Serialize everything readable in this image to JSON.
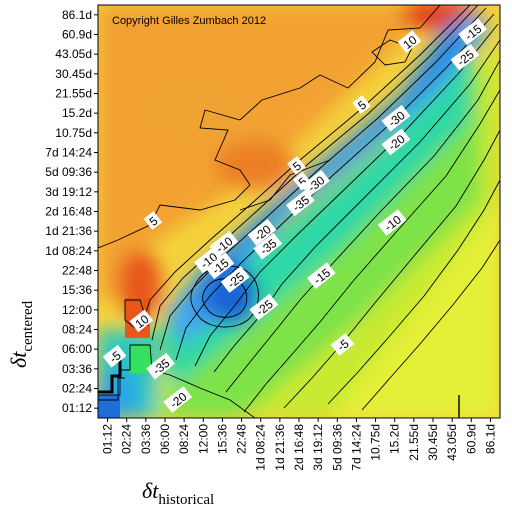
{
  "chart_data": {
    "type": "heatmap",
    "subtype": "contour",
    "copyright": "Copyright Gilles Zumbach 2012",
    "xlabel": {
      "main": "δt",
      "sub": "historical"
    },
    "ylabel": {
      "main": "δt",
      "sub": "centered"
    },
    "x_ticks": [
      "01:12",
      "02:24",
      "03:36",
      "06:00",
      "08:24",
      "12:00",
      "15:36",
      "22:48",
      "1d 08:24",
      "1d 21:36",
      "2d 16:48",
      "3d 19:12",
      "5d 09:36",
      "7d 14:24",
      "10.75d",
      "15.2d",
      "21.55d",
      "30.45d",
      "43.05d",
      "60.9d",
      "86.1d"
    ],
    "y_ticks": [
      "01:12",
      "02:24",
      "03:36",
      "06:00",
      "08:24",
      "12:00",
      "15:36",
      "22:48",
      "1d 08:24",
      "1d 21:36",
      "2d 16:48",
      "3d 19:12",
      "5d 09:36",
      "7d 14:24",
      "10.75d",
      "15.2d",
      "21.55d",
      "30.45d",
      "43.05d",
      "60.9d",
      "86.1d"
    ],
    "contour_levels": [
      -35,
      -30,
      -25,
      -20,
      -15,
      -10,
      -5,
      0,
      5,
      10,
      15
    ],
    "contour_labels": [
      {
        "text": "10",
        "x": 16.3,
        "y": 19.1
      },
      {
        "text": "-15",
        "x": 19.6,
        "y": 19.6
      },
      {
        "text": "-25",
        "x": 19.2,
        "y": 18.3
      },
      {
        "text": "5",
        "x": 13.8,
        "y": 15.9
      },
      {
        "text": "-30",
        "x": 15.6,
        "y": 15.2
      },
      {
        "text": "-20",
        "x": 15.6,
        "y": 14.0
      },
      {
        "text": "5",
        "x": 10.4,
        "y": 12.8
      },
      {
        "text": "5",
        "x": 10.7,
        "y": 12.0
      },
      {
        "text": "-30",
        "x": 11.4,
        "y": 11.9
      },
      {
        "text": "-35",
        "x": 10.6,
        "y": 10.9
      },
      {
        "text": "-10",
        "x": 15.4,
        "y": 9.9
      },
      {
        "text": "5",
        "x": 2.9,
        "y": 10.0
      },
      {
        "text": "-20",
        "x": 8.6,
        "y": 9.4
      },
      {
        "text": "-10",
        "x": 6.6,
        "y": 8.8
      },
      {
        "text": "-35",
        "x": 8.9,
        "y": 8.7
      },
      {
        "text": "-10",
        "x": 5.8,
        "y": 8.0
      },
      {
        "text": "-15",
        "x": 6.4,
        "y": 7.7
      },
      {
        "text": "-25",
        "x": 7.2,
        "y": 7.0
      },
      {
        "text": "-15",
        "x": 11.7,
        "y": 7.2
      },
      {
        "text": "-25",
        "x": 8.7,
        "y": 5.6
      },
      {
        "text": "10",
        "x": 2.3,
        "y": 4.9
      },
      {
        "text": "-5",
        "x": 12.8,
        "y": 3.7
      },
      {
        "text": "-5",
        "x": 0.9,
        "y": 3.1
      },
      {
        "text": "-35",
        "x": 3.3,
        "y": 2.6
      },
      {
        "text": "-20",
        "x": 4.2,
        "y": 0.9
      }
    ],
    "colorscale": [
      "#1e6ad6",
      "#3aa2ee",
      "#2fd6d0",
      "#2fe070",
      "#8ee63a",
      "#d2ee30",
      "#f6f43a",
      "#f8d23a",
      "#f6a636",
      "#ee7c2a",
      "#e2401c"
    ],
    "grid": false,
    "legend": "none"
  }
}
